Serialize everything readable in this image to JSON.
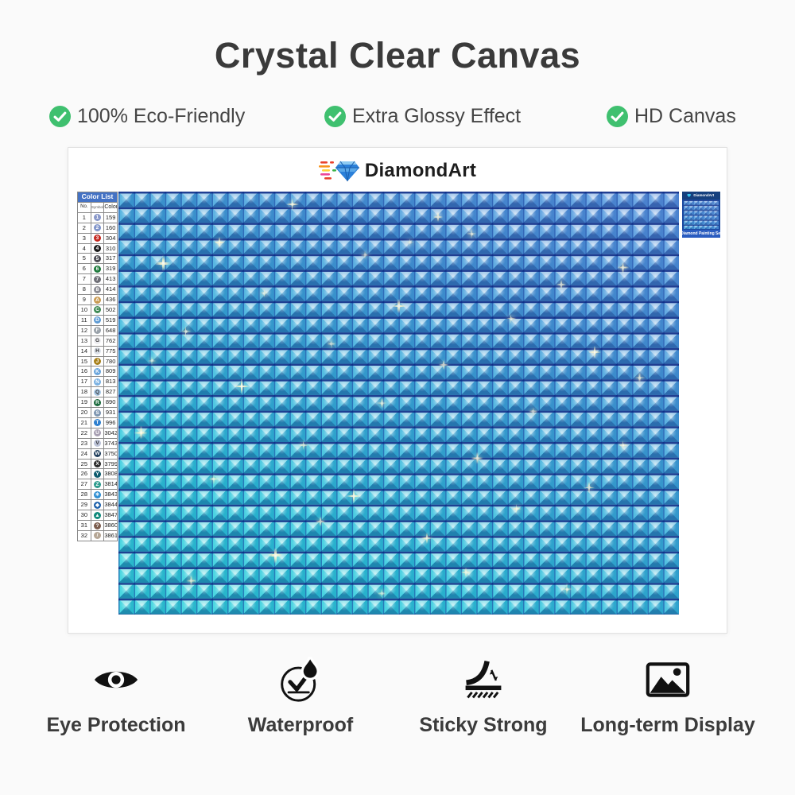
{
  "title": "Crystal Clear Canvas",
  "accent_green": "#3fc06f",
  "features": [
    {
      "label": "100% Eco-Friendly"
    },
    {
      "label": "Extra Glossy Effect"
    },
    {
      "label": "HD Canvas"
    }
  ],
  "brand": {
    "name": "DiamondArt"
  },
  "color_list": {
    "title": "Color List",
    "columns": {
      "no": "No.",
      "symbol": "Symbol",
      "color": "Color"
    },
    "rows": [
      {
        "no": "1",
        "symbol": "1",
        "circle": "#8897c9",
        "text": "#ffffff",
        "code": "159"
      },
      {
        "no": "2",
        "symbol": "2",
        "circle": "#8094c9",
        "text": "#ffffff",
        "code": "160"
      },
      {
        "no": "3",
        "symbol": "3",
        "circle": "#c4281f",
        "text": "#ffffff",
        "code": "304"
      },
      {
        "no": "4",
        "symbol": "4",
        "circle": "#1a1a1a",
        "text": "#ffffff",
        "code": "310"
      },
      {
        "no": "5",
        "symbol": "5",
        "circle": "#4a4a52",
        "text": "#ffffff",
        "code": "317"
      },
      {
        "no": "6",
        "symbol": "6",
        "circle": "#1f7a3d",
        "text": "#ffffff",
        "code": "319"
      },
      {
        "no": "7",
        "symbol": "7",
        "circle": "#6e6e76",
        "text": "#ffffff",
        "code": "413"
      },
      {
        "no": "8",
        "symbol": "8",
        "circle": "#8c8c94",
        "text": "#ffffff",
        "code": "414"
      },
      {
        "no": "9",
        "symbol": "A",
        "circle": "#c89a52",
        "text": "#ffffff",
        "code": "436"
      },
      {
        "no": "10",
        "symbol": "C",
        "circle": "#3f8a55",
        "text": "#ffffff",
        "code": "502"
      },
      {
        "no": "11",
        "symbol": "D",
        "circle": "#5e9bd4",
        "text": "#ffffff",
        "code": "519"
      },
      {
        "no": "12",
        "symbol": "F",
        "circle": "#9aa2aa",
        "text": "#ffffff",
        "code": "648"
      },
      {
        "no": "13",
        "symbol": "G",
        "circle": "#ececf0",
        "text": "#333333",
        "code": "762"
      },
      {
        "no": "14",
        "symbol": "H",
        "circle": "#dde2ea",
        "text": "#333333",
        "code": "775"
      },
      {
        "no": "15",
        "symbol": "J",
        "circle": "#a8811c",
        "text": "#ffffff",
        "code": "780"
      },
      {
        "no": "16",
        "symbol": "K",
        "circle": "#6aa5dc",
        "text": "#ffffff",
        "code": "809"
      },
      {
        "no": "17",
        "symbol": "N",
        "circle": "#79b0e2",
        "text": "#ffffff",
        "code": "813"
      },
      {
        "no": "18",
        "symbol": "Q",
        "circle": "#a9c9e6",
        "text": "#333333",
        "code": "827"
      },
      {
        "no": "19",
        "symbol": "R",
        "circle": "#1d6b3f",
        "text": "#ffffff",
        "code": "890"
      },
      {
        "no": "20",
        "symbol": "S",
        "circle": "#7d95b0",
        "text": "#ffffff",
        "code": "931"
      },
      {
        "no": "21",
        "symbol": "T",
        "circle": "#2f80cf",
        "text": "#ffffff",
        "code": "996"
      },
      {
        "no": "22",
        "symbol": "U",
        "circle": "#a79fb2",
        "text": "#ffffff",
        "code": "3042"
      },
      {
        "no": "23",
        "symbol": "V",
        "circle": "#bcc3d8",
        "text": "#333333",
        "code": "3743"
      },
      {
        "no": "24",
        "symbol": "W",
        "circle": "#22405e",
        "text": "#ffffff",
        "code": "3750"
      },
      {
        "no": "25",
        "symbol": "X",
        "circle": "#2b2b2b",
        "text": "#ffffff",
        "code": "3799"
      },
      {
        "no": "26",
        "symbol": "Y",
        "circle": "#0e5b6d",
        "text": "#ffffff",
        "code": "3808"
      },
      {
        "no": "27",
        "symbol": "Z",
        "circle": "#2d9b8d",
        "text": "#ffffff",
        "code": "3814"
      },
      {
        "no": "28",
        "symbol": "✳",
        "circle": "#2e8ed2",
        "text": "#ffffff",
        "code": "3843"
      },
      {
        "no": "29",
        "symbol": "◆",
        "circle": "#1d61ab",
        "text": "#ffffff",
        "code": "3844"
      },
      {
        "no": "30",
        "symbol": "▲",
        "circle": "#128a7c",
        "text": "#ffffff",
        "code": "3847"
      },
      {
        "no": "31",
        "symbol": "?",
        "circle": "#7b5c4d",
        "text": "#ffffff",
        "code": "3860"
      },
      {
        "no": "32",
        "symbol": "/",
        "circle": "#b5a695",
        "text": "#ffffff",
        "code": "3861"
      }
    ]
  },
  "thumbnail": {
    "brand": "DiamondArt",
    "caption": "Diamond Painting Set"
  },
  "benefits": [
    {
      "label": "Eye Protection"
    },
    {
      "label": "Waterproof"
    },
    {
      "label": "Sticky Strong"
    },
    {
      "label": "Long-term Display"
    }
  ]
}
